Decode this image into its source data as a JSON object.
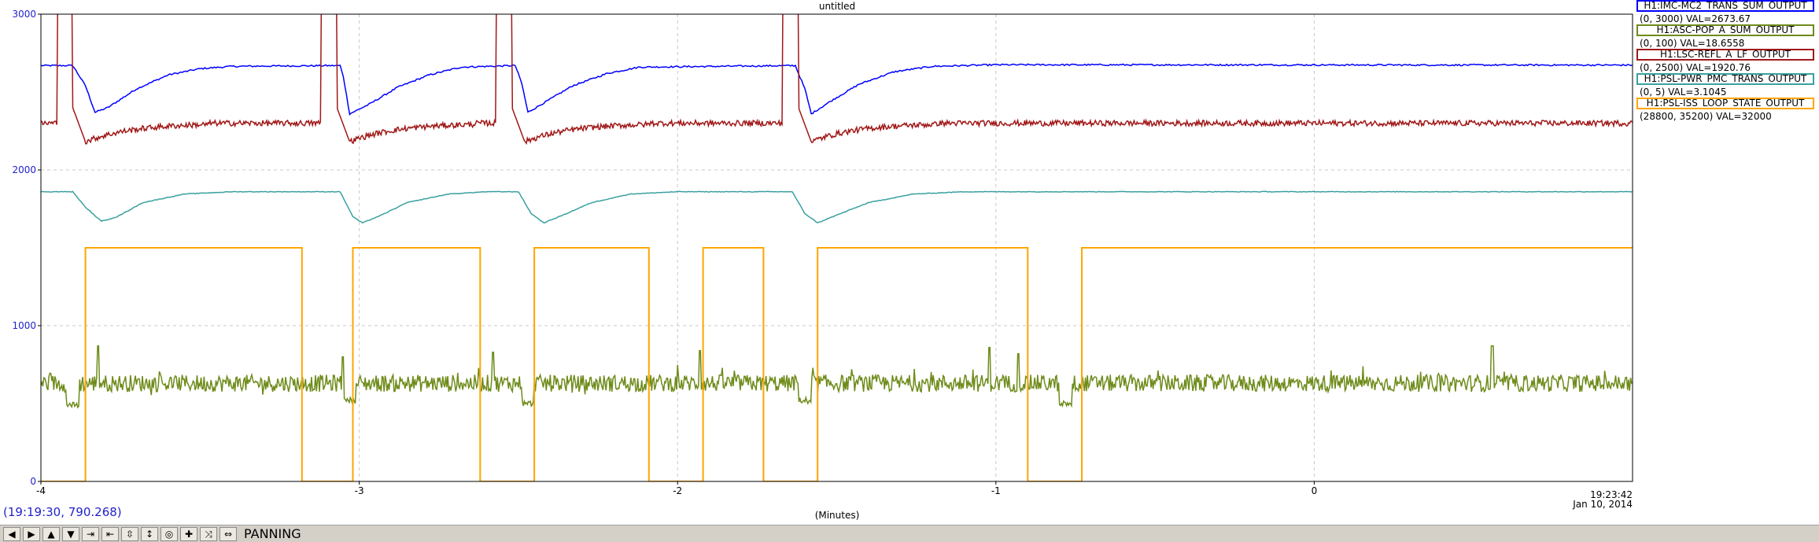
{
  "chart_data": {
    "type": "line",
    "title": "untitled",
    "xlabel": "(Minutes)",
    "x_ticks": [
      -4,
      -3,
      -2,
      -1,
      0
    ],
    "x_range": [
      -4.0,
      1.0
    ],
    "ylim": [
      0,
      3000
    ],
    "y_ticks": [
      0,
      1000,
      2000,
      3000
    ],
    "grid": true,
    "end_time": "19:23:42",
    "end_date": "Jan 10, 2014",
    "series": [
      {
        "name": "H1:IMC-MC2_TRANS_SUM_OUTPUT",
        "range": "(0, 3000)",
        "value_text": "VAL=2673.67",
        "color": "#0000ff",
        "points": [
          [
            -4,
            2670
          ],
          [
            -3.9,
            2670
          ],
          [
            -3.86,
            2540
          ],
          [
            -3.83,
            2370
          ],
          [
            -3.79,
            2400
          ],
          [
            -3.7,
            2520
          ],
          [
            -3.6,
            2610
          ],
          [
            -3.5,
            2650
          ],
          [
            -3.4,
            2665
          ],
          [
            -3.06,
            2670
          ],
          [
            -3.05,
            2600
          ],
          [
            -3.03,
            2360
          ],
          [
            -2.97,
            2420
          ],
          [
            -2.88,
            2530
          ],
          [
            -2.78,
            2610
          ],
          [
            -2.68,
            2660
          ],
          [
            -2.51,
            2670
          ],
          [
            -2.49,
            2560
          ],
          [
            -2.47,
            2370
          ],
          [
            -2.42,
            2430
          ],
          [
            -2.33,
            2540
          ],
          [
            -2.22,
            2620
          ],
          [
            -2.12,
            2660
          ],
          [
            -1.63,
            2670
          ],
          [
            -1.6,
            2520
          ],
          [
            -1.58,
            2360
          ],
          [
            -1.52,
            2440
          ],
          [
            -1.43,
            2550
          ],
          [
            -1.32,
            2630
          ],
          [
            -1.2,
            2665
          ],
          [
            -1.0,
            2675
          ],
          [
            1.0,
            2673
          ]
        ]
      },
      {
        "name": "H1:ASC-POP_A_SUM_OUTPUT",
        "range": "(0, 100)",
        "value_text": "VAL=18.6558",
        "color": "#6e8b1a",
        "base": 630,
        "noise": 55,
        "spikes": [
          [
            -3.82,
            870
          ],
          [
            -3.05,
            800
          ],
          [
            -2.58,
            830
          ],
          [
            -2.47,
            820
          ],
          [
            -1.93,
            840
          ],
          [
            -1.6,
            800
          ],
          [
            -1.02,
            860
          ],
          [
            -0.93,
            820
          ],
          [
            0.56,
            870
          ]
        ],
        "dips": [
          [
            -3.9,
            490
          ],
          [
            -3.03,
            520
          ],
          [
            -2.47,
            500
          ],
          [
            -1.6,
            520
          ],
          [
            -0.78,
            500
          ]
        ]
      },
      {
        "name": "H1:LSC-REFL_A_LF_OUTPUT",
        "range": "(0, 2500)",
        "value_text": "VAL=1920.76",
        "color": "#a01818",
        "base": 2300,
        "noise": 18,
        "bursts": [
          -3.92,
          -3.09,
          -2.54,
          -1.64
        ]
      },
      {
        "name": "H1:PSL-PWR_PMC_TRANS_OUTPUT",
        "range": "(0, 5)",
        "value_text": "VAL=3.1045",
        "color": "#3aa0a0",
        "points": [
          [
            -4,
            1860
          ],
          [
            -3.9,
            1860
          ],
          [
            -3.86,
            1760
          ],
          [
            -3.81,
            1670
          ],
          [
            -3.76,
            1700
          ],
          [
            -3.68,
            1790
          ],
          [
            -3.55,
            1845
          ],
          [
            -3.4,
            1860
          ],
          [
            -3.06,
            1860
          ],
          [
            -3.02,
            1700
          ],
          [
            -2.99,
            1660
          ],
          [
            -2.93,
            1710
          ],
          [
            -2.85,
            1790
          ],
          [
            -2.72,
            1845
          ],
          [
            -2.6,
            1860
          ],
          [
            -2.5,
            1860
          ],
          [
            -2.46,
            1720
          ],
          [
            -2.42,
            1660
          ],
          [
            -2.36,
            1710
          ],
          [
            -2.27,
            1790
          ],
          [
            -2.15,
            1845
          ],
          [
            -2.0,
            1860
          ],
          [
            -1.64,
            1860
          ],
          [
            -1.6,
            1720
          ],
          [
            -1.56,
            1660
          ],
          [
            -1.5,
            1710
          ],
          [
            -1.4,
            1790
          ],
          [
            -1.26,
            1845
          ],
          [
            -1.1,
            1860
          ],
          [
            1.0,
            1860
          ]
        ]
      },
      {
        "name": "H1:PSL-ISS_LOOP_STATE_OUTPUT",
        "range": "(28800, 35200)",
        "value_text": "VAL=32000",
        "color": "#ffa500",
        "steps": [
          [
            -4,
            0
          ],
          [
            -3.86,
            1500
          ],
          [
            -3.18,
            0
          ],
          [
            -3.02,
            1500
          ],
          [
            -2.62,
            0
          ],
          [
            -2.45,
            1500
          ],
          [
            -2.09,
            0
          ],
          [
            -1.92,
            1500
          ],
          [
            -1.73,
            0
          ],
          [
            -1.56,
            1500
          ],
          [
            -0.9,
            0
          ],
          [
            -0.73,
            1500
          ],
          [
            1.0,
            1500
          ]
        ]
      }
    ]
  },
  "status": {
    "coordinates": "(19:19:30, 790.268)",
    "mode": "PANNING"
  },
  "toolbar": {
    "buttons": [
      {
        "name": "scroll-left",
        "glyph": "◀"
      },
      {
        "name": "scroll-right",
        "glyph": "▶"
      },
      {
        "name": "scroll-up",
        "glyph": "▲"
      },
      {
        "name": "scroll-down",
        "glyph": "▼"
      },
      {
        "name": "zoom-in-x",
        "glyph": "⇥"
      },
      {
        "name": "zoom-out-x",
        "glyph": "⇤"
      },
      {
        "name": "zoom-in-y",
        "glyph": "⇳"
      },
      {
        "name": "zoom-out-y",
        "glyph": "↕"
      },
      {
        "name": "reset",
        "glyph": "◎"
      },
      {
        "name": "crosshair",
        "glyph": "✚"
      },
      {
        "name": "autoscale",
        "glyph": "⤨"
      },
      {
        "name": "pan",
        "glyph": "⇔"
      }
    ]
  }
}
